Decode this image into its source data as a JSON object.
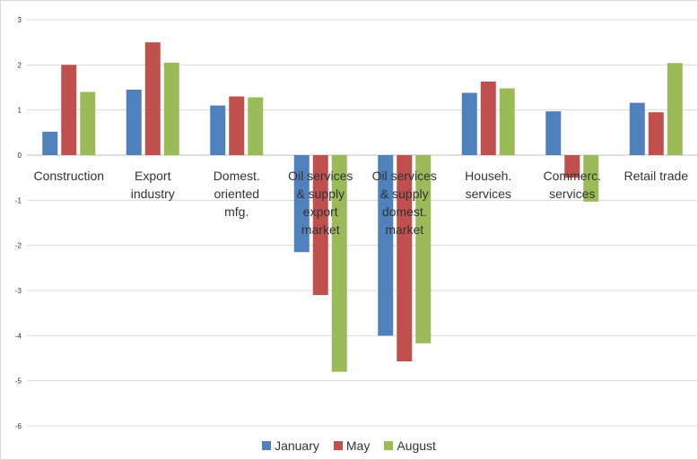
{
  "chart_data": {
    "type": "bar",
    "categories": [
      [
        "Construction"
      ],
      [
        "Export",
        "industry"
      ],
      [
        "Domest.",
        "oriented",
        "mfg."
      ],
      [
        "Oil services",
        "& supply",
        "export",
        "market"
      ],
      [
        "Oil services",
        "& supply",
        "domest.",
        "market"
      ],
      [
        "Househ.",
        "services"
      ],
      [
        "Commerc.",
        "services"
      ],
      [
        "Retail trade"
      ]
    ],
    "series": [
      {
        "name": "January",
        "color": "#4f81bd",
        "values": [
          0.52,
          1.45,
          1.1,
          -2.15,
          -4.0,
          1.38,
          0.97,
          1.16
        ]
      },
      {
        "name": "May",
        "color": "#c0504d",
        "values": [
          2.0,
          2.5,
          1.3,
          -3.1,
          -4.57,
          1.63,
          -0.5,
          0.95
        ]
      },
      {
        "name": "August",
        "color": "#9bbb59",
        "values": [
          1.4,
          2.05,
          1.28,
          -4.8,
          -4.17,
          1.48,
          -1.03,
          2.04
        ]
      }
    ],
    "ylim": [
      -6,
      3
    ],
    "yticks": [
      3,
      2,
      1,
      0,
      -1,
      -2,
      -3,
      -4,
      -5,
      -6
    ],
    "grid": true,
    "legend_position": "bottom",
    "title": "",
    "xlabel": "",
    "ylabel": ""
  }
}
